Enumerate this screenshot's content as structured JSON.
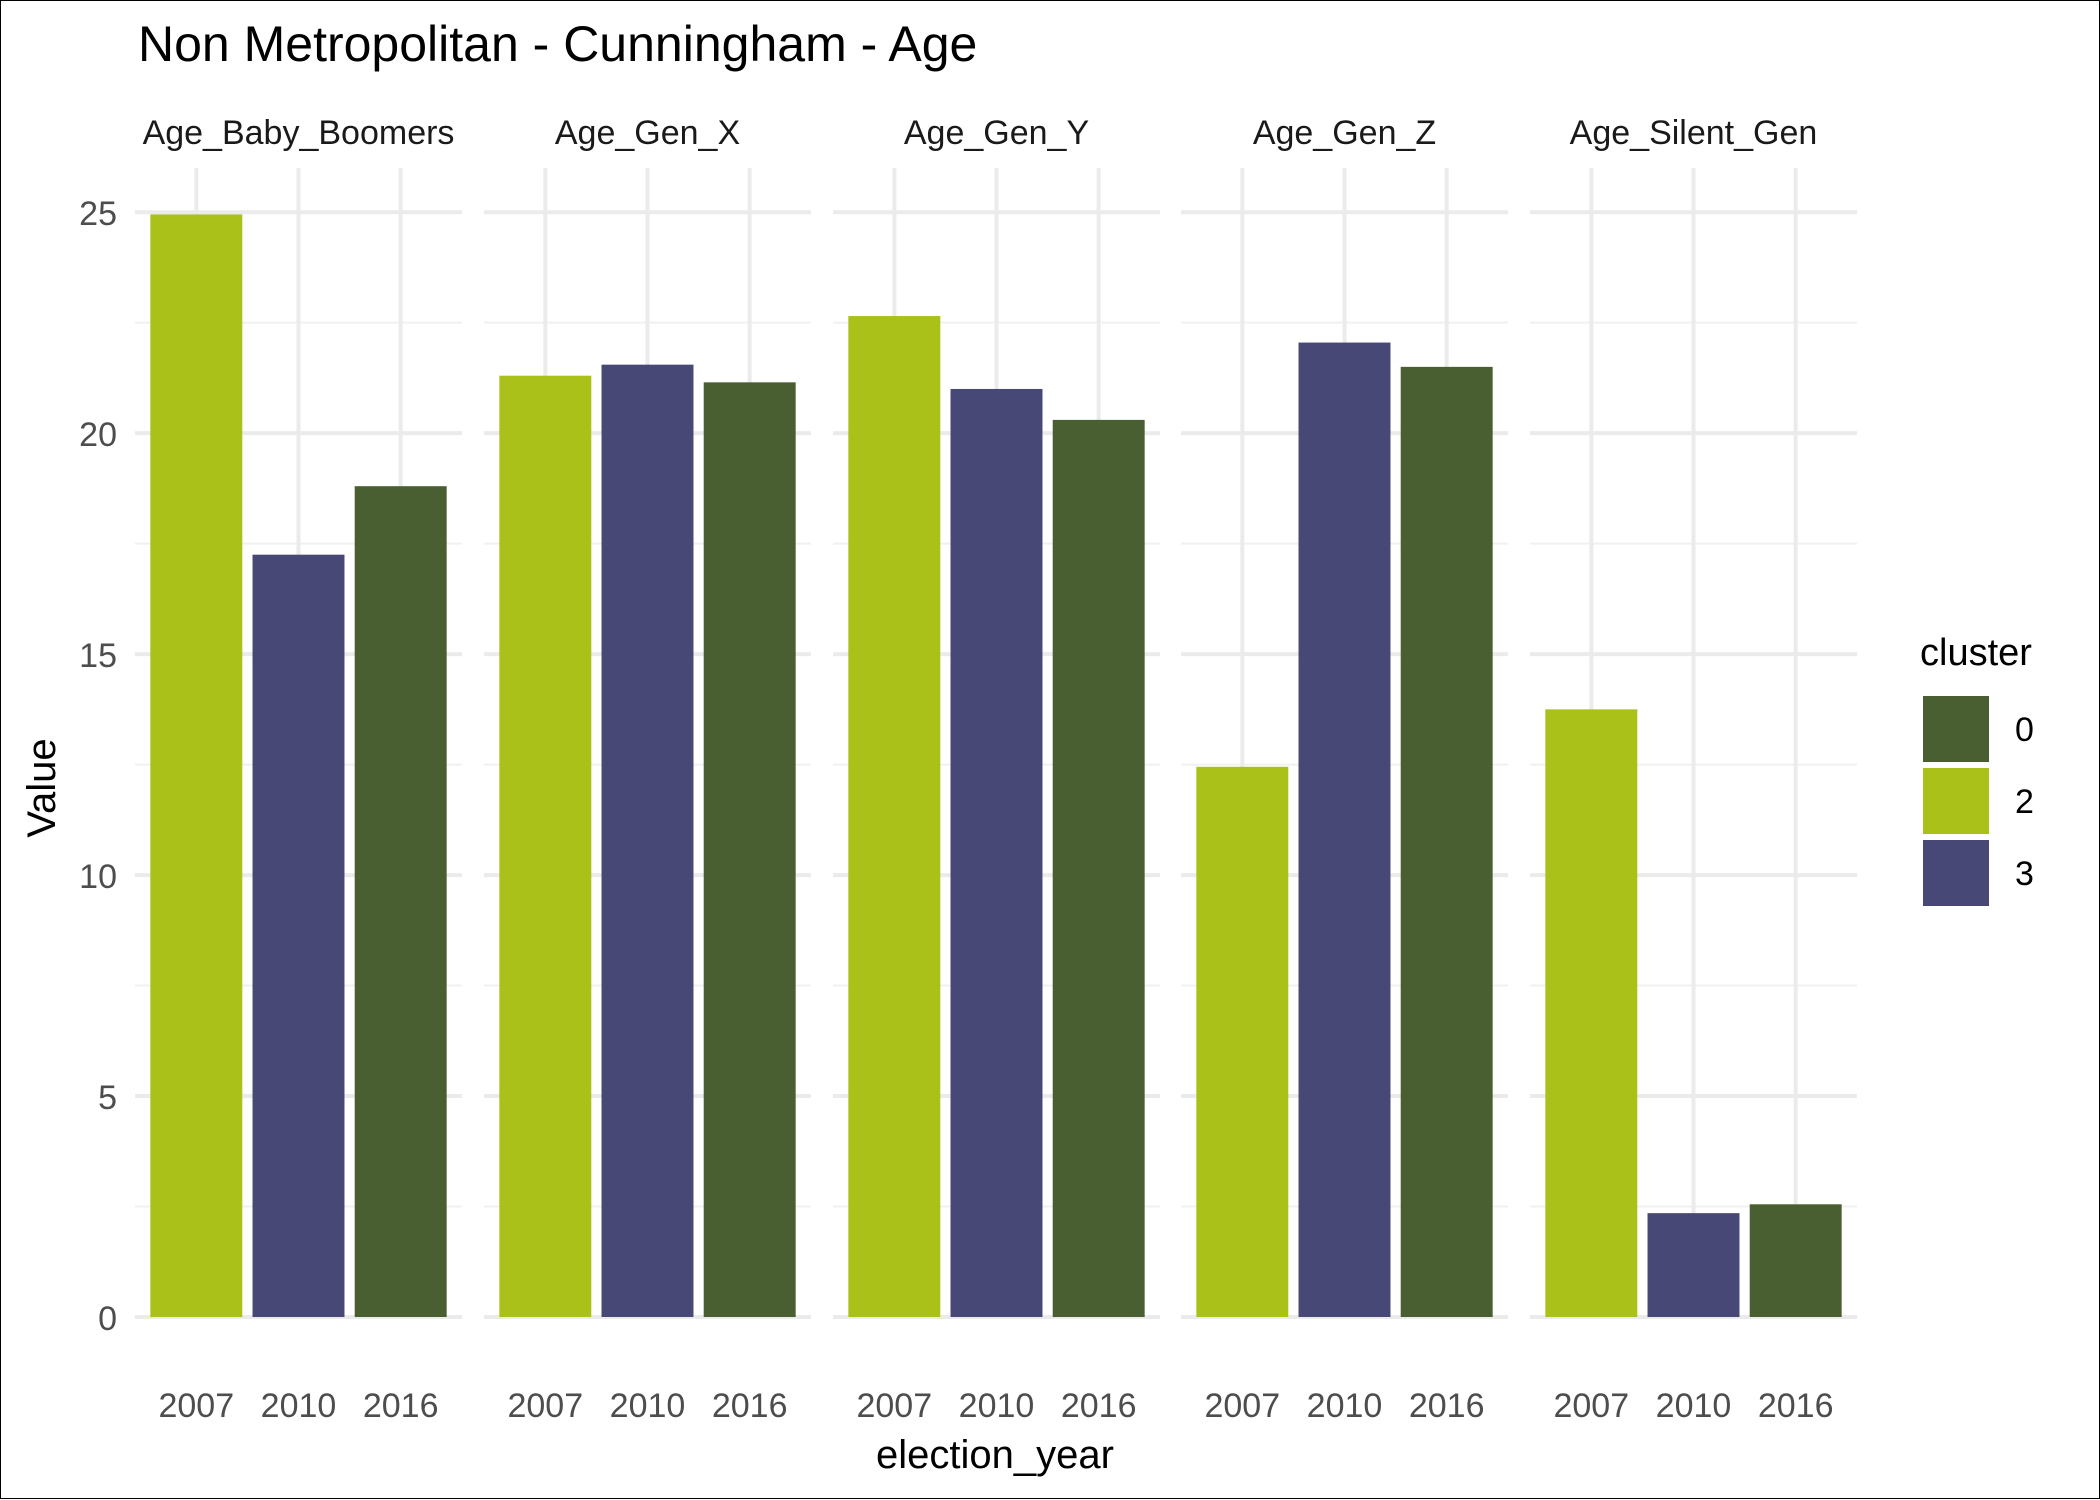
{
  "chart_data": {
    "type": "bar",
    "title": "Non Metropolitan - Cunningham - Age",
    "xlabel": "election_year",
    "ylabel": "Value",
    "ylim": [
      0,
      26
    ],
    "yticks": [
      0,
      5,
      10,
      15,
      20,
      25
    ],
    "grid": true,
    "legend": {
      "title": "cluster",
      "position": "right",
      "entries": [
        {
          "label": "0",
          "color": "#4a5f31"
        },
        {
          "label": "2",
          "color": "#aac11a"
        },
        {
          "label": "3",
          "color": "#474876"
        }
      ]
    },
    "categories": [
      "2007",
      "2010",
      "2016"
    ],
    "facets": [
      {
        "name": "Age_Baby_Boomers",
        "values": [
          24.95,
          17.25,
          18.8
        ],
        "clusters": [
          "2",
          "3",
          "0"
        ]
      },
      {
        "name": "Age_Gen_X",
        "values": [
          21.3,
          21.55,
          21.15
        ],
        "clusters": [
          "2",
          "3",
          "0"
        ]
      },
      {
        "name": "Age_Gen_Y",
        "values": [
          22.65,
          21.0,
          20.3
        ],
        "clusters": [
          "2",
          "3",
          "0"
        ]
      },
      {
        "name": "Age_Gen_Z",
        "values": [
          12.45,
          22.05,
          21.5
        ],
        "clusters": [
          "2",
          "3",
          "0"
        ]
      },
      {
        "name": "Age_Silent_Gen",
        "values": [
          13.75,
          2.35,
          2.55
        ],
        "clusters": [
          "2",
          "3",
          "0"
        ]
      }
    ]
  }
}
